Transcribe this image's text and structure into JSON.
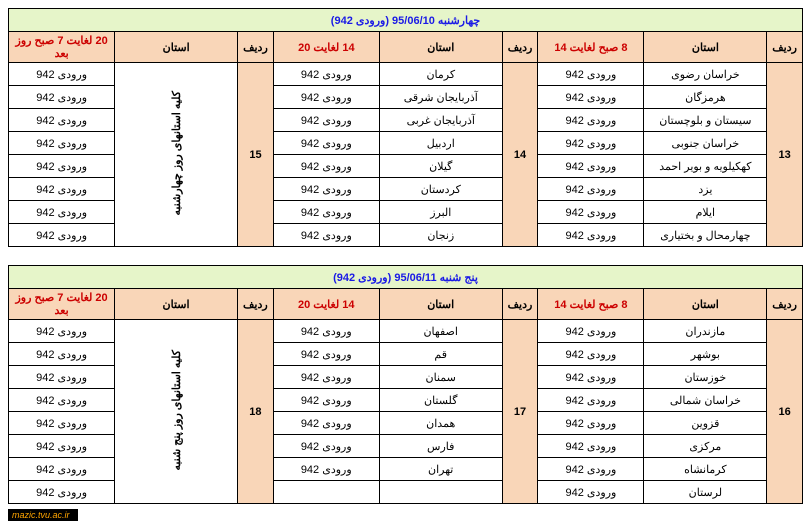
{
  "watermark": "mazic.tvu.ac.ir",
  "tables": [
    {
      "title": "چهارشنبه  95/06/10 (ورودی 942)",
      "headers": {
        "idx": "ردیف",
        "prov": "استان",
        "timeA": "8 صبح لغایت 14",
        "timeB": "14 لغایت 20",
        "timeC": "20 لغایت 7 صبح روز بعد"
      },
      "bigIdx": {
        "a": "13",
        "b": "14",
        "c": "15"
      },
      "rotLabel": "کلیه استانهای روز چهارشنبه",
      "entry": "ورودی 942",
      "provA": [
        "خراسان رضوی",
        "هرمزگان",
        "سیستان و بلوچستان",
        "خراسان جنوبی",
        "کهکیلویه و بویر احمد",
        "یزد",
        "ایلام",
        "چهارمحال و بختیاری"
      ],
      "provB": [
        "کرمان",
        "آذربایجان شرقی",
        "آذربایجان غربی",
        "اردبیل",
        "گیلان",
        "کردستان",
        "البرز",
        "زنجان"
      ]
    },
    {
      "title": "پنج شنبه  95/06/11 (ورودی 942)",
      "headers": {
        "idx": "ردیف",
        "prov": "استان",
        "timeA": "8 صبح لغایت 14",
        "timeB": "14 لغایت 20",
        "timeC": "20 لغایت 7 صبح روز بعد"
      },
      "bigIdx": {
        "a": "16",
        "b": "17",
        "c": "18"
      },
      "rotLabel": "کلیه استانهای روز پنج شنبه",
      "entry": "ورودی 942",
      "provA": [
        "مازندران",
        "بوشهر",
        "خوزستان",
        "خراسان شمالی",
        "قزوین",
        "مرکزی",
        "کرمانشاه",
        "لرستان"
      ],
      "provB": [
        "اصفهان",
        "قم",
        "سمنان",
        "گلستان",
        "همدان",
        "فارس",
        "تهران",
        ""
      ]
    }
  ],
  "colors": {
    "titleBg": "#e6f5c9",
    "titleText": "#1a1ae6",
    "headerBg": "#f9d6b8",
    "timeText": "#cc0000",
    "border": "#000000",
    "background": "#ffffff"
  }
}
